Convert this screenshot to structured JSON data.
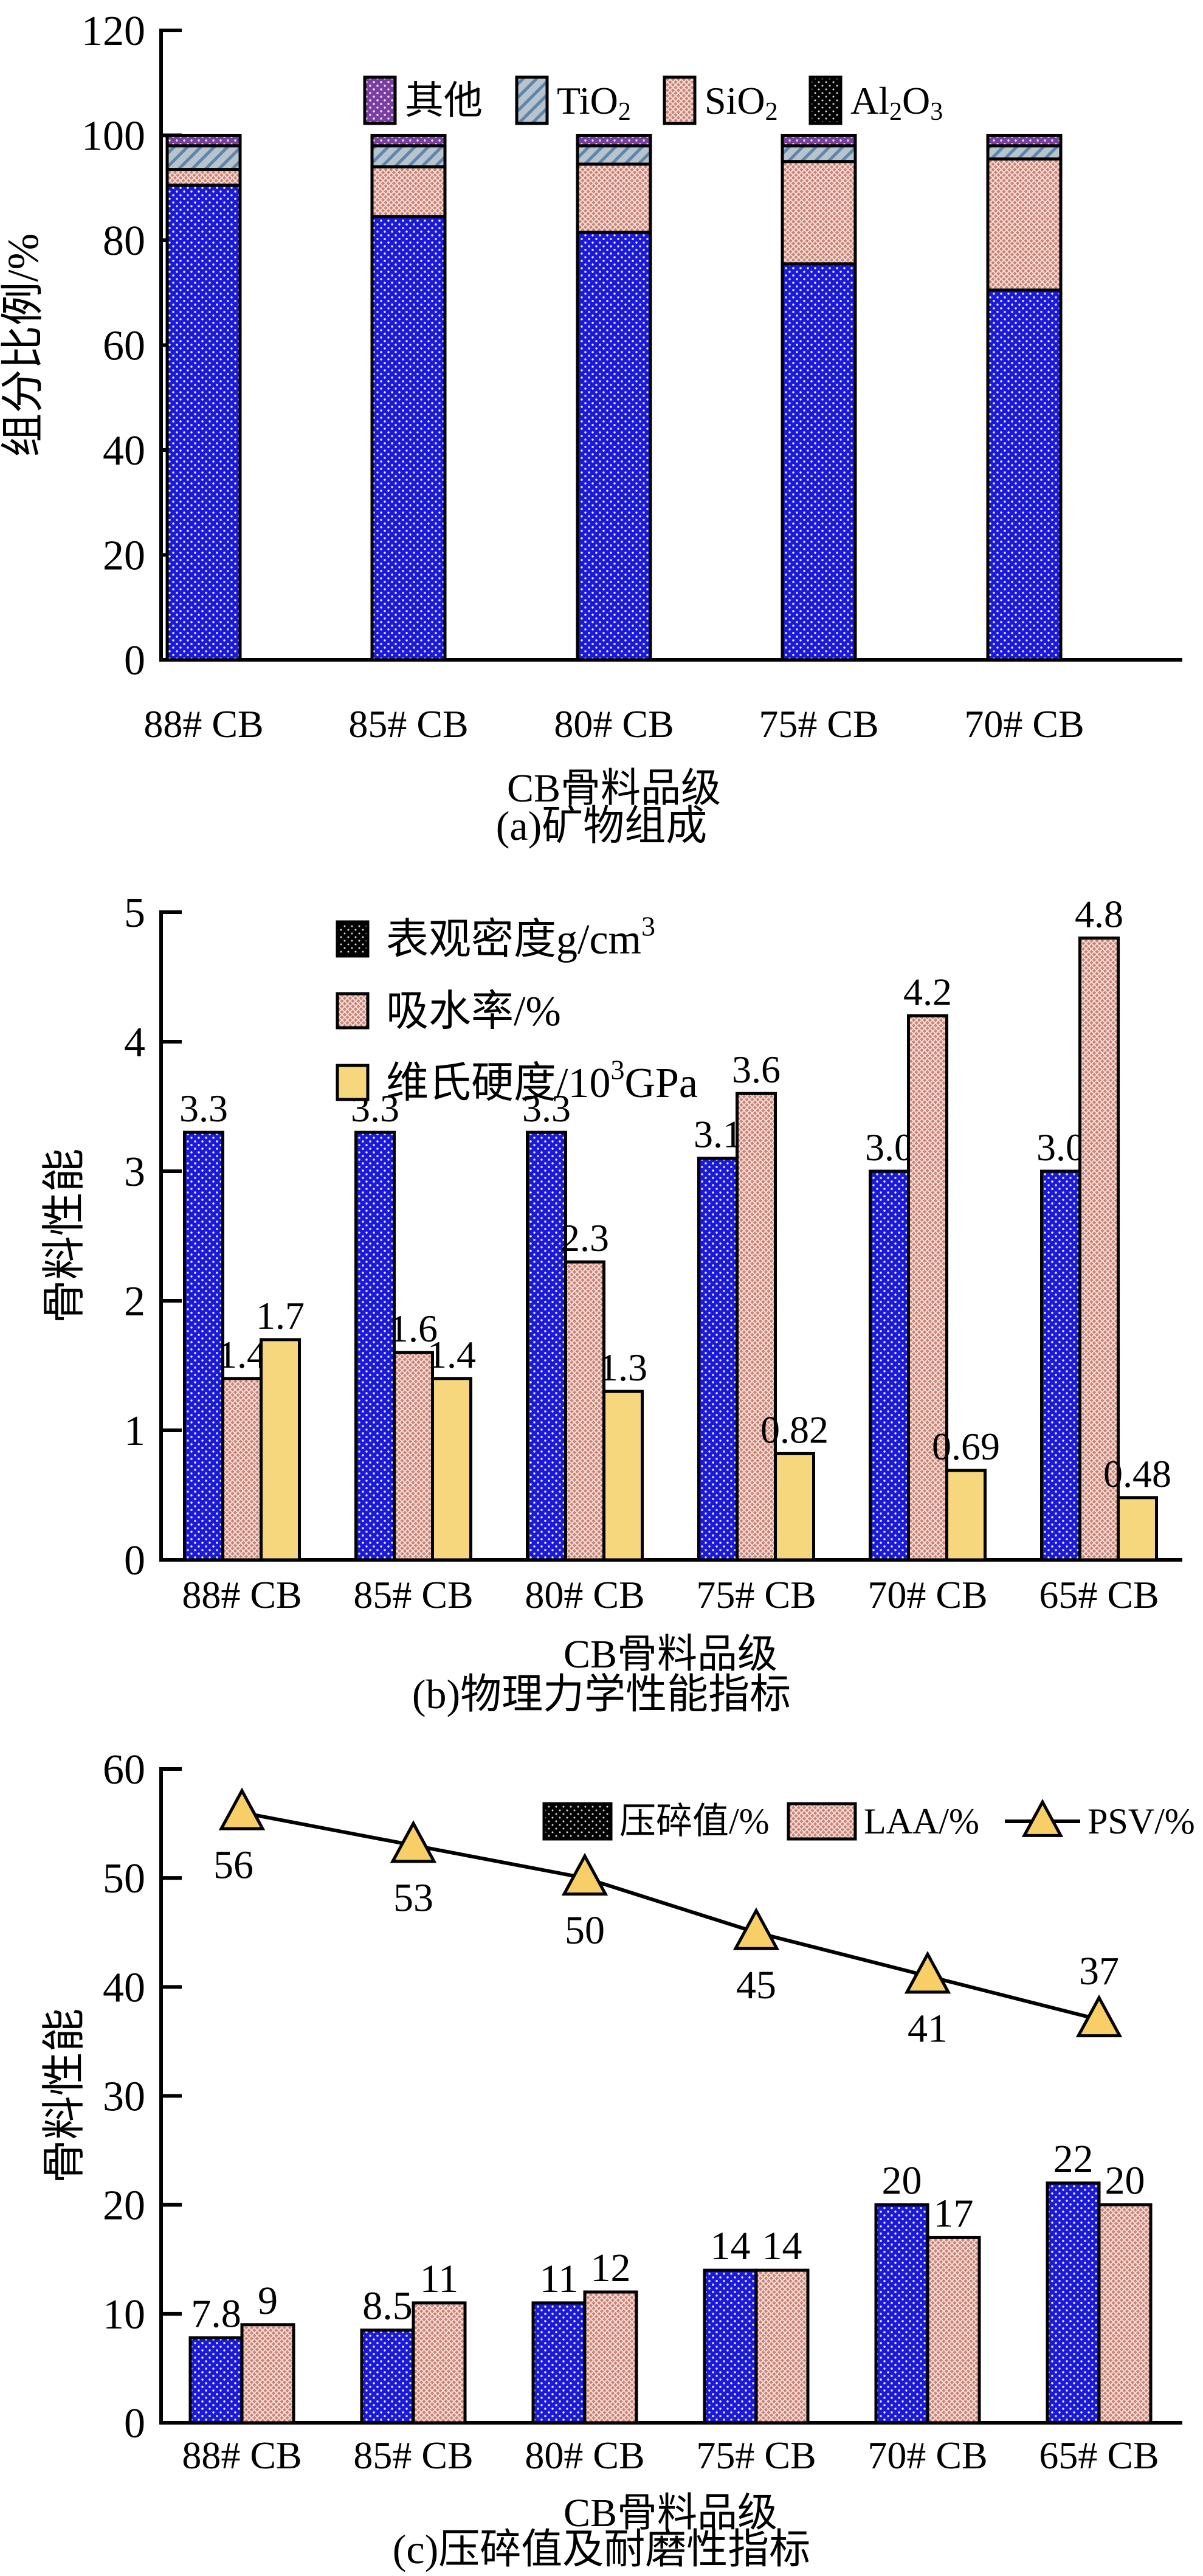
{
  "colors": {
    "bar_blue": "#1a1ad8",
    "bar_salmon": "#cb8276",
    "bar_yellow": "#f6d77d",
    "hatch_bluegray_bg": "#b7c3cd",
    "hatch_bluegray_line": "#5e86aa",
    "purple": "#7a3da2",
    "legend_black": "#000000",
    "marker_yellow": "#f8ce67",
    "axis": "#000000"
  },
  "chart_data": [
    {
      "id": "a",
      "type": "stacked_bar",
      "title": "(a)矿物组成",
      "xlabel": "CB骨料品级",
      "ylabel": "组分比例/%",
      "ylim": [
        0,
        120
      ],
      "ytick_step": 20,
      "grid": false,
      "legend_position": "top-center-row",
      "categories": [
        "88# CB",
        "85# CB",
        "80# CB",
        "75# CB",
        "70# CB"
      ],
      "series": [
        {
          "name": "Al₂O₃",
          "label_parts": [
            {
              "t": "Al"
            },
            {
              "sub": "2"
            },
            {
              "t": "O"
            },
            {
              "sub": "3"
            }
          ],
          "values": [
            90.5,
            84.5,
            81.5,
            75.5,
            70.5
          ],
          "fill": "blue-dots",
          "legend_fill": "black-dots"
        },
        {
          "name": "SiO₂",
          "label_parts": [
            {
              "t": "SiO"
            },
            {
              "sub": "2"
            }
          ],
          "values": [
            3,
            9.5,
            13,
            19.5,
            25
          ],
          "fill": "salmon-cross"
        },
        {
          "name": "TiO₂",
          "label_parts": [
            {
              "t": "TiO"
            },
            {
              "sub": "2"
            }
          ],
          "values": [
            4.5,
            4,
            3.5,
            3,
            2.5
          ],
          "fill": "bluegray-hatch"
        },
        {
          "name": "其他",
          "label_parts": [
            {
              "t": "其他"
            }
          ],
          "values": [
            2,
            2,
            2,
            2,
            2
          ],
          "fill": "purple-dots"
        }
      ],
      "legend_order": [
        "其他",
        "TiO₂",
        "SiO₂",
        "Al₂O₃"
      ]
    },
    {
      "id": "b",
      "type": "grouped_bar",
      "title": "(b)物理力学性能指标",
      "xlabel": "CB骨料品级",
      "ylabel": "骨料性能",
      "ylim": [
        0,
        5
      ],
      "ytick_step": 1,
      "grid": false,
      "legend_position": "top-left-column",
      "categories": [
        "88# CB",
        "85# CB",
        "80# CB",
        "75# CB",
        "70# CB",
        "65# CB"
      ],
      "series": [
        {
          "name": "表观密度g/cm³",
          "label_parts": [
            {
              "t": "表观密度g/cm"
            },
            {
              "sup": "3"
            }
          ],
          "values": [
            3.3,
            3.3,
            3.3,
            3.1,
            3.0,
            3.0
          ],
          "labels": [
            "3.3",
            "3.3",
            "3.3",
            "3.1",
            "3.0",
            "3.0"
          ],
          "fill": "blue-dots",
          "legend_fill": "black-dots"
        },
        {
          "name": "吸水率/%",
          "label_parts": [
            {
              "t": "吸水率/%"
            }
          ],
          "values": [
            1.4,
            1.6,
            2.3,
            3.6,
            4.2,
            4.8
          ],
          "labels": [
            "1.4",
            "1.6",
            "2.3",
            "3.6",
            "4.2",
            "4.8"
          ],
          "fill": "salmon-cross"
        },
        {
          "name": "维氏硬度/10³GPa",
          "label_parts": [
            {
              "t": "维氏硬度/10"
            },
            {
              "sup": "3"
            },
            {
              "t": "GPa"
            }
          ],
          "values": [
            1.7,
            1.4,
            1.3,
            0.82,
            0.69,
            0.48
          ],
          "labels": [
            "1.7",
            "1.4",
            "1.3",
            "0.82",
            "0.69",
            "0.48"
          ],
          "fill": "yellow"
        }
      ]
    },
    {
      "id": "c",
      "type": "bar_line_combo",
      "title": "(c)压碎值及耐磨性指标",
      "xlabel": "CB骨料品级",
      "ylabel": "骨料性能",
      "ylim": [
        0,
        60
      ],
      "ytick_step": 10,
      "grid": false,
      "legend_position": "top-right-row",
      "categories": [
        "88# CB",
        "85# CB",
        "80# CB",
        "75# CB",
        "70# CB",
        "65# CB"
      ],
      "series": [
        {
          "name": "压碎值/%",
          "kind": "bar",
          "label_parts": [
            {
              "t": "压碎值/%"
            }
          ],
          "values": [
            7.8,
            8.5,
            11,
            14,
            20,
            22
          ],
          "labels": [
            "7.8",
            "8.5",
            "11",
            "14",
            "20",
            "22"
          ],
          "fill": "blue-dots",
          "legend_fill": "black-dots"
        },
        {
          "name": "LAA/%",
          "kind": "bar",
          "label_parts": [
            {
              "t": "LAA/%"
            }
          ],
          "values": [
            9,
            11,
            12,
            14,
            17,
            20
          ],
          "labels": [
            "9",
            "11",
            "12",
            "14",
            "17",
            "20"
          ],
          "fill": "salmon-cross"
        },
        {
          "name": "PSV/%",
          "kind": "line",
          "label_parts": [
            {
              "t": "PSV/%"
            }
          ],
          "values": [
            56,
            53,
            50,
            45,
            41,
            37
          ],
          "labels": [
            "56",
            "53",
            "50",
            "45",
            "41",
            "37"
          ],
          "label_pos": [
            "below",
            "below",
            "below",
            "below",
            "below",
            "above"
          ],
          "fill": "yellow"
        }
      ]
    }
  ]
}
